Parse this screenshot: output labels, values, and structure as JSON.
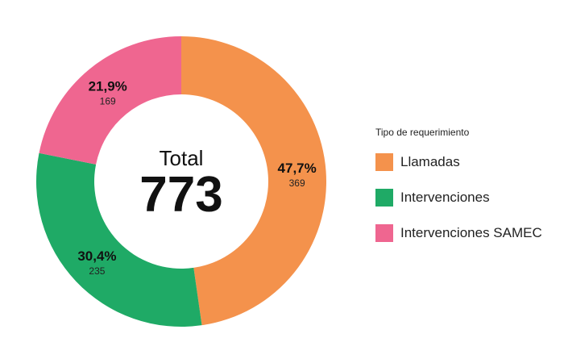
{
  "chart_data": {
    "type": "pie",
    "total_label": "Total",
    "total_value": "773",
    "legend_title": "Tipo de requerimiento",
    "legend_placement": "right",
    "slices": [
      {
        "name": "Llamadas",
        "value": 369,
        "percent_label": "47,7%",
        "count_label": "369",
        "color": "#f4924c"
      },
      {
        "name": "Intervenciones",
        "value": 235,
        "percent_label": "30,4%",
        "count_label": "235",
        "color": "#1faa66"
      },
      {
        "name": "Intervenciones SAMEC",
        "value": 169,
        "percent_label": "21,9%",
        "count_label": "169",
        "color": "#ef6690"
      }
    ]
  }
}
